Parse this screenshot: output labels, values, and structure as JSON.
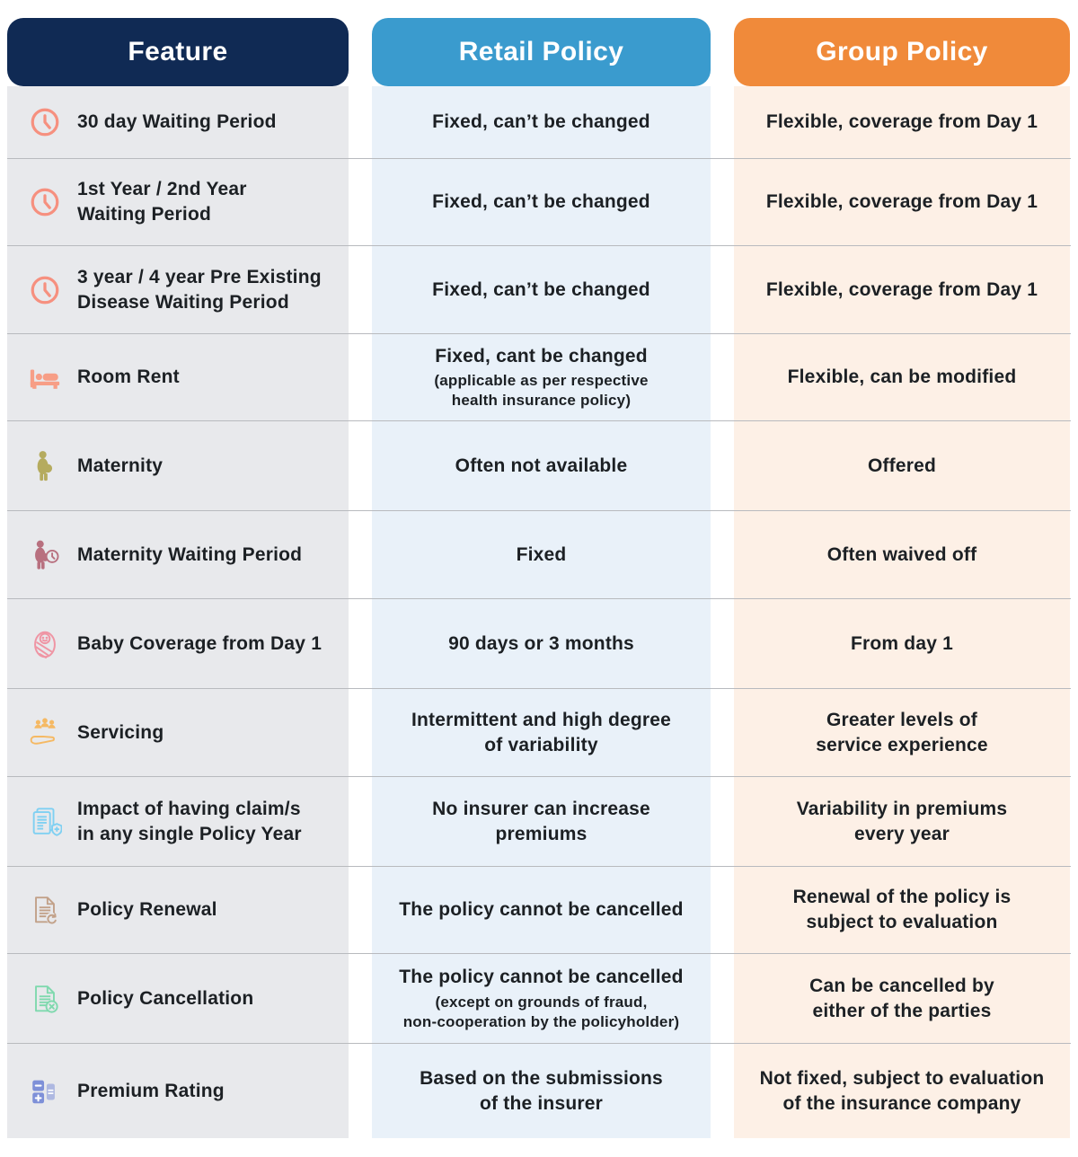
{
  "table": {
    "columns": [
      {
        "key": "feature",
        "label": "Feature",
        "header_bg": "#102a54"
      },
      {
        "key": "retail",
        "label": "Retail Policy",
        "header_bg": "#3a9bce"
      },
      {
        "key": "group",
        "label": "Group Policy",
        "header_bg": "#f08a3a"
      }
    ],
    "column_bg": {
      "feature": "#e8e9ec",
      "retail": "#e9f1f9",
      "group": "#fdf0e6"
    },
    "icon_colors": {
      "clock-icon": "#f6907f",
      "bed-icon": "#f79e86",
      "pregnant-woman-icon": "#b5ab5e",
      "maternity-clock-icon": "#b8707f",
      "baby-icon": "#ef95a4",
      "service-hand-icon": "#f5b964",
      "claim-document-icon": "#7fd0f2",
      "policy-renewal-icon": "#c2a189",
      "policy-cancellation-icon": "#7fd9ae",
      "calculator-icon": "#7e90d8"
    },
    "rows": [
      {
        "icon": "clock-icon",
        "feature": "30 day Waiting Period",
        "retail": "Fixed, can’t be changed",
        "group": "Flexible, coverage from Day 1"
      },
      {
        "icon": "clock-icon",
        "feature": "1st Year / 2nd Year\nWaiting Period",
        "retail": "Fixed, can’t be changed",
        "group": "Flexible, coverage from Day 1"
      },
      {
        "icon": "clock-icon",
        "feature": "3 year / 4 year Pre Existing\nDisease Waiting Period",
        "retail": "Fixed, can’t be changed",
        "group": "Flexible, coverage from Day 1"
      },
      {
        "icon": "bed-icon",
        "feature": "Room Rent",
        "retail": "Fixed, cant be changed",
        "retail_note": "(applicable as per respective\nhealth insurance policy)",
        "group": "Flexible, can be modified"
      },
      {
        "icon": "pregnant-woman-icon",
        "feature": "Maternity",
        "retail": "Often not available",
        "group": "Offered"
      },
      {
        "icon": "maternity-clock-icon",
        "feature": "Maternity Waiting Period",
        "retail": "Fixed",
        "group": "Often waived off"
      },
      {
        "icon": "baby-icon",
        "feature": "Baby Coverage from Day 1",
        "retail": "90 days or 3 months",
        "group": "From day 1"
      },
      {
        "icon": "service-hand-icon",
        "feature": "Servicing",
        "retail": "Intermittent and high degree\nof variability",
        "group": "Greater levels of\nservice experience"
      },
      {
        "icon": "claim-document-icon",
        "feature": "Impact of having claim/s\nin any single Policy Year",
        "retail": "No insurer can increase\npremiums",
        "group": "Variability in premiums\nevery year"
      },
      {
        "icon": "policy-renewal-icon",
        "feature": "Policy Renewal",
        "retail": "The policy cannot be cancelled",
        "group": "Renewal of the policy is\nsubject to evaluation"
      },
      {
        "icon": "policy-cancellation-icon",
        "feature": "Policy Cancellation",
        "retail": "The policy cannot be cancelled",
        "retail_note": "(except on grounds of fraud,\nnon-cooperation by the policyholder)",
        "group": "Can be cancelled by\neither of the parties"
      },
      {
        "icon": "calculator-icon",
        "feature": "Premium Rating",
        "retail": "Based on the submissions\nof the insurer",
        "group": "Not fixed, subject to evaluation\nof the insurance company"
      }
    ]
  }
}
